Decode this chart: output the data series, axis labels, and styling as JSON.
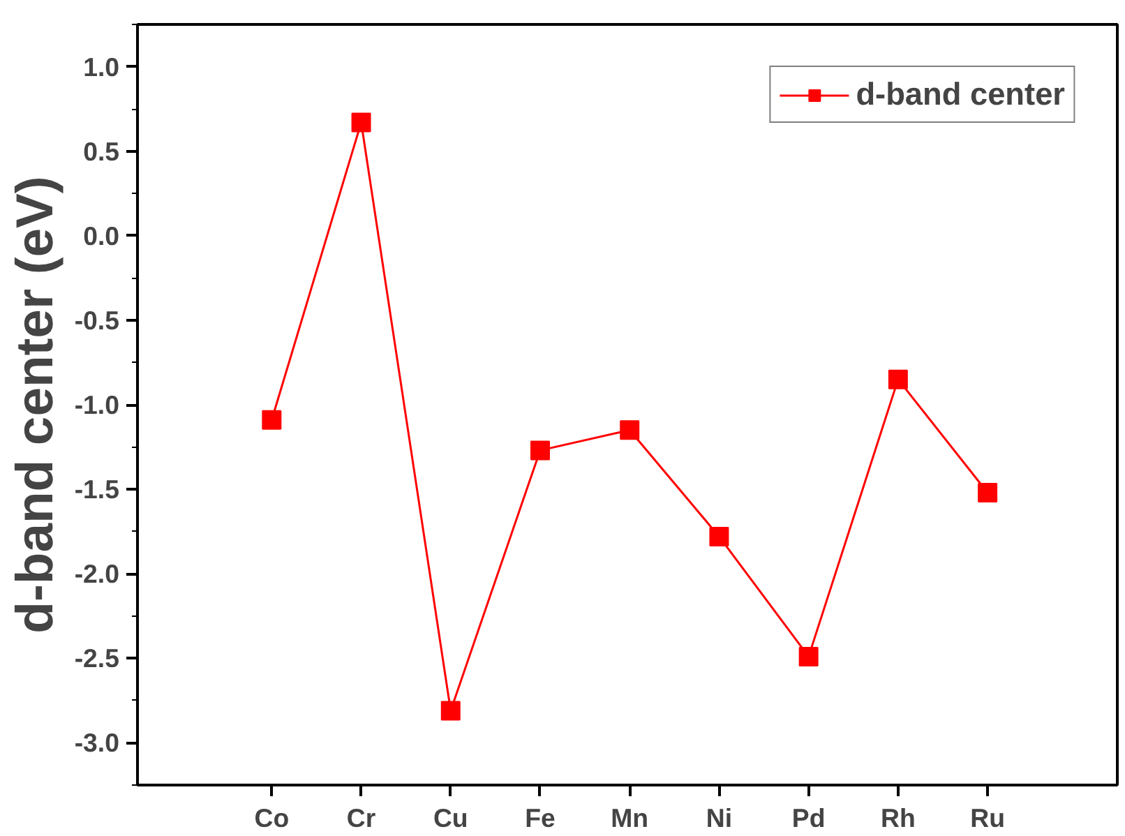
{
  "chart_data": {
    "type": "line",
    "ylabel": "d-band center (eV)",
    "categories": [
      "Co",
      "Cr",
      "Cu",
      "Fe",
      "Mn",
      "Ni",
      "Pd",
      "Rh",
      "Ru"
    ],
    "series": [
      {
        "name": "d-band center",
        "color": "#ff0000",
        "values": [
          -1.09,
          0.67,
          -2.81,
          -1.27,
          -1.15,
          -1.78,
          -2.49,
          -0.85,
          -1.52
        ]
      }
    ],
    "ylim": [
      -3.25,
      1.25
    ],
    "yticks": [
      {
        "value": -3.0,
        "label": "-3.0"
      },
      {
        "value": -2.5,
        "label": "-2.5"
      },
      {
        "value": -2.0,
        "label": "-2.0"
      },
      {
        "value": -1.5,
        "label": "-1.5"
      },
      {
        "value": -1.0,
        "label": "-1.0"
      },
      {
        "value": -0.5,
        "label": "-0.5"
      },
      {
        "value": 0.0,
        "label": "0.0"
      },
      {
        "value": 0.5,
        "label": "0.5"
      },
      {
        "value": 1.0,
        "label": "1.0"
      }
    ],
    "grid": false,
    "legend": "top right",
    "marker": "square",
    "line_style": "solid"
  }
}
